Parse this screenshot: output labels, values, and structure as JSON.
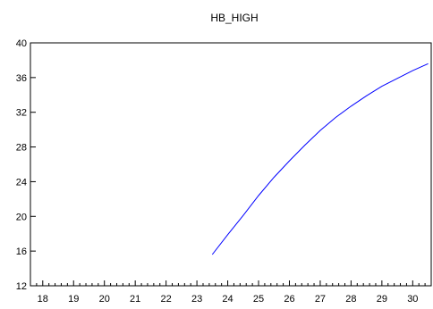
{
  "chart_data": {
    "type": "line",
    "title": "HB_HIGH",
    "xlabel": "",
    "ylabel": "",
    "xlim": [
      17.6,
      30.6
    ],
    "ylim": [
      12,
      40
    ],
    "xticks_major": [
      18,
      19,
      20,
      21,
      22,
      23,
      24,
      25,
      26,
      27,
      28,
      29,
      30
    ],
    "yticks": [
      12,
      16,
      20,
      24,
      28,
      32,
      36,
      40
    ],
    "grid": false,
    "legend": "none",
    "series": [
      {
        "color": "#0000ff",
        "x": [
          23.5,
          24.0,
          24.5,
          25.0,
          25.5,
          26.0,
          26.5,
          27.0,
          27.5,
          28.0,
          28.5,
          29.0,
          29.5,
          30.0,
          30.5
        ],
        "y": [
          15.6,
          17.9,
          20.1,
          22.4,
          24.5,
          26.4,
          28.2,
          29.9,
          31.4,
          32.7,
          33.9,
          35.0,
          35.9,
          36.8,
          37.6
        ]
      }
    ]
  }
}
